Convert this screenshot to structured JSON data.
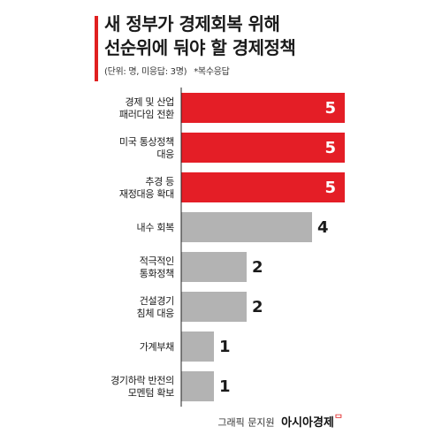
{
  "title": [
    "새 정부가 경제회복 위해",
    "선순위에 둬야 할 경제정책"
  ],
  "note": {
    "unit": "(단위: 명, 미응답: 3명)",
    "extra": "*복수응답"
  },
  "footer": {
    "credit": "그래픽 문지원",
    "brand": "아시아경제",
    "mark": "ᄆ"
  },
  "colors": {
    "highlight": "#e41e26",
    "normal": "#b3b3b3",
    "accent": "#e02020"
  },
  "chart_data": {
    "type": "bar",
    "orientation": "horizontal",
    "categories": [
      [
        "경제 및 산업",
        "패러다임 전환"
      ],
      [
        "미국 통상정책",
        "대응"
      ],
      [
        "추경 등",
        "재정대응 확대"
      ],
      [
        "내수 회복"
      ],
      [
        "적극적인",
        "통화정책"
      ],
      [
        "건설경기",
        "침체 대응"
      ],
      [
        "가계부채"
      ],
      [
        "경기하락 반전의",
        "모멘텀 확보"
      ]
    ],
    "values": [
      5,
      5,
      5,
      4,
      2,
      2,
      1,
      1
    ],
    "highlighted": [
      true,
      true,
      true,
      false,
      false,
      false,
      false,
      false
    ],
    "xlim": [
      0,
      5
    ],
    "grid": false
  }
}
